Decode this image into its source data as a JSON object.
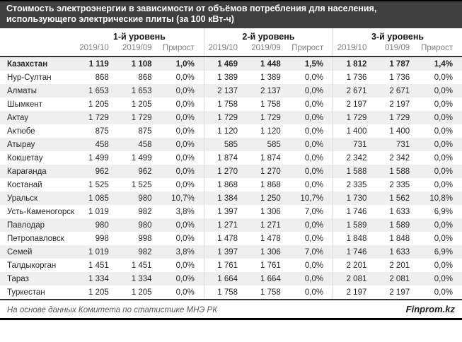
{
  "title": {
    "line1": "Стоимость электроэнергии в зависимости от объёмов потребления для населения,",
    "line2": "использующего электрические плиты (за 100 кВт-ч)"
  },
  "header": {
    "groups": [
      {
        "label": "1-й уровень",
        "subcols": [
          "2019/10",
          "2019/09",
          "Прирост"
        ]
      },
      {
        "label": "2-й уровень",
        "subcols": [
          "2019/10",
          "2019/09",
          "Прирост"
        ]
      },
      {
        "label": "3-й уровень",
        "subcols": [
          "2019/10",
          "019/09",
          "Прирост"
        ]
      }
    ]
  },
  "footer": {
    "source": "На основе данных Комитета по статистике МНЭ РК",
    "brand": "Finprom.kz"
  },
  "colors": {
    "title_bar": "#3f3f3f",
    "stripe": "#efefef",
    "group_divider": "#d9d9d9",
    "header_rule": "#333333",
    "muted_text": "#808080"
  },
  "chart_data": {
    "type": "table",
    "title": "Стоимость электроэнергии в зависимости от объёмов потребления для населения, использующего электрические плиты (за 100 кВт-ч)",
    "column_groups": [
      "1-й уровень",
      "2-й уровень",
      "3-й уровень"
    ],
    "columns_per_group": [
      "2019/10",
      "2019/09",
      "Прирост"
    ],
    "rows": [
      {
        "region": "Казахстан",
        "bold": true,
        "values": [
          "1 119",
          "1 108",
          "1,0%",
          "1 469",
          "1 448",
          "1,5%",
          "1 812",
          "1 787",
          "1,4%"
        ]
      },
      {
        "region": "Нур-Султан",
        "bold": false,
        "values": [
          "868",
          "868",
          "0,0%",
          "1 389",
          "1 389",
          "0,0%",
          "1 736",
          "1 736",
          "0,0%"
        ]
      },
      {
        "region": "Алматы",
        "bold": false,
        "values": [
          "1 653",
          "1 653",
          "0,0%",
          "2 137",
          "2 137",
          "0,0%",
          "2 671",
          "2 671",
          "0,0%"
        ]
      },
      {
        "region": "Шымкент",
        "bold": false,
        "values": [
          "1 205",
          "1 205",
          "0,0%",
          "1 758",
          "1 758",
          "0,0%",
          "2 197",
          "2 197",
          "0,0%"
        ]
      },
      {
        "region": "Актау",
        "bold": false,
        "values": [
          "1 729",
          "1 729",
          "0,0%",
          "1 729",
          "1 729",
          "0,0%",
          "1 729",
          "1 729",
          "0,0%"
        ]
      },
      {
        "region": "Актюбе",
        "bold": false,
        "values": [
          "875",
          "875",
          "0,0%",
          "1 120",
          "1 120",
          "0,0%",
          "1 400",
          "1 400",
          "0,0%"
        ]
      },
      {
        "region": "Атырау",
        "bold": false,
        "values": [
          "458",
          "458",
          "0,0%",
          "585",
          "585",
          "0,0%",
          "731",
          "731",
          "0,0%"
        ]
      },
      {
        "region": "Кокшетау",
        "bold": false,
        "values": [
          "1 499",
          "1 499",
          "0,0%",
          "1 874",
          "1 874",
          "0,0%",
          "2 342",
          "2 342",
          "0,0%"
        ]
      },
      {
        "region": "Караганда",
        "bold": false,
        "values": [
          "962",
          "962",
          "0,0%",
          "1 270",
          "1 270",
          "0,0%",
          "1 588",
          "1 588",
          "0,0%"
        ]
      },
      {
        "region": "Костанай",
        "bold": false,
        "values": [
          "1 525",
          "1 525",
          "0,0%",
          "1 868",
          "1 868",
          "0,0%",
          "2 335",
          "2 335",
          "0,0%"
        ]
      },
      {
        "region": "Уральск",
        "bold": false,
        "values": [
          "1 085",
          "980",
          "10,7%",
          "1 384",
          "1 250",
          "10,7%",
          "1 730",
          "1 562",
          "10,8%"
        ]
      },
      {
        "region": "Усть-Каменогорск",
        "bold": false,
        "values": [
          "1 019",
          "982",
          "3,8%",
          "1 397",
          "1 306",
          "7,0%",
          "1 746",
          "1 633",
          "6,9%"
        ]
      },
      {
        "region": "Павлодар",
        "bold": false,
        "values": [
          "980",
          "980",
          "0,0%",
          "1 271",
          "1 271",
          "0,0%",
          "1 589",
          "1 589",
          "0,0%"
        ]
      },
      {
        "region": "Петропавловск",
        "bold": false,
        "values": [
          "998",
          "998",
          "0,0%",
          "1 478",
          "1 478",
          "0,0%",
          "1 848",
          "1 848",
          "0,0%"
        ]
      },
      {
        "region": "Семей",
        "bold": false,
        "values": [
          "1 019",
          "982",
          "3,8%",
          "1 397",
          "1 306",
          "7,0%",
          "1 746",
          "1 633",
          "6,9%"
        ]
      },
      {
        "region": "Талдыкорган",
        "bold": false,
        "values": [
          "1 451",
          "1 451",
          "0,0%",
          "1 761",
          "1 761",
          "0,0%",
          "2 201",
          "2 201",
          "0,0%"
        ]
      },
      {
        "region": "Тараз",
        "bold": false,
        "values": [
          "1 334",
          "1 334",
          "0,0%",
          "1 664",
          "1 664",
          "0,0%",
          "2 081",
          "2 081",
          "0,0%"
        ]
      },
      {
        "region": "Туркестан",
        "bold": false,
        "values": [
          "1 205",
          "1 205",
          "0,0%",
          "1 758",
          "1 758",
          "0,0%",
          "2 197",
          "2 197",
          "0,0%"
        ]
      }
    ]
  }
}
